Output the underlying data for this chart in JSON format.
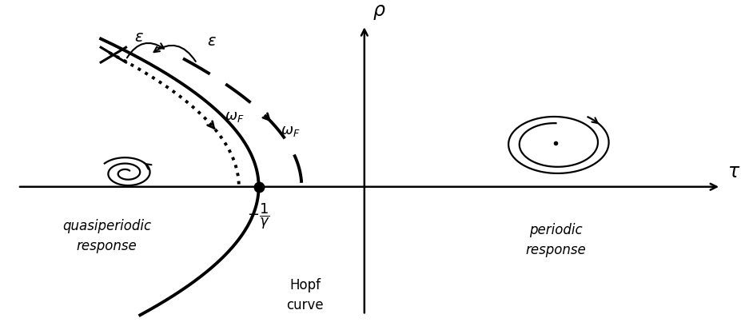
{
  "background_color": "#ffffff",
  "quasiperiodic_label": "quasiperiodic\nresponse",
  "periodic_label": "periodic\nresponse",
  "hopf_label": "Hopf\ncurve"
}
